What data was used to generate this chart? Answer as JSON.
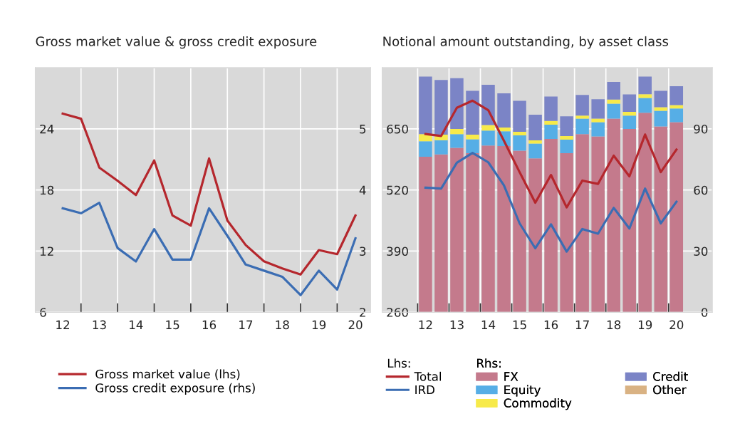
{
  "chart_data": [
    {
      "type": "line",
      "title": "Gross market value & gross credit exposure",
      "categories": [
        "12",
        null,
        "13",
        null,
        "14",
        null,
        "15",
        null,
        "16",
        null,
        "17",
        null,
        "18",
        null,
        "19",
        null,
        "20"
      ],
      "series": [
        {
          "name": "Gross market value (lhs)",
          "color": "#b5272d",
          "axis": "y",
          "values": [
            25.5,
            25.0,
            20.2,
            18.9,
            17.5,
            20.9,
            15.5,
            14.5,
            21.1,
            15.0,
            12.6,
            11.0,
            10.3,
            9.7,
            12.1,
            11.7,
            15.5
          ]
        },
        {
          "name": "Gross credit exposure (rhs)",
          "color": "#3b6db3",
          "axis": "y2",
          "values": [
            3.7,
            3.62,
            3.79,
            3.05,
            2.83,
            3.36,
            2.86,
            2.86,
            3.7,
            3.25,
            2.78,
            2.68,
            2.58,
            2.28,
            2.68,
            2.37,
            3.21
          ]
        }
      ],
      "ylim": [
        6,
        30
      ],
      "yticks": [
        6,
        12,
        18,
        24
      ],
      "y2lim": [
        2,
        6
      ],
      "y2ticks": [
        2,
        3,
        4,
        5
      ],
      "grid": true,
      "legend": "bottom",
      "line_style": "solid",
      "marker": "none"
    },
    {
      "type": "bar",
      "title": "Notional amount outstanding, by asset class",
      "stacked": true,
      "categories": [
        "12",
        null,
        "13",
        null,
        "14",
        null,
        "15",
        null,
        "16",
        null,
        "17",
        null,
        "18",
        null,
        "19",
        null,
        "20"
      ],
      "series": [
        {
          "name": "FX",
          "color": "#c47a8c",
          "axis": "y2",
          "values": [
            76.3,
            77.5,
            80.7,
            78.1,
            81.8,
            81.6,
            79.3,
            75.5,
            85.1,
            78.1,
            87.4,
            86.3,
            95.0,
            90.0,
            97.9,
            91.2,
            93.3
          ]
        },
        {
          "name": "Equity",
          "color": "#56aee6",
          "axis": "y2",
          "values": [
            7.6,
            7.0,
            6.7,
            6.8,
            7.4,
            7.2,
            7.5,
            7.3,
            7.0,
            6.6,
            7.6,
            7.0,
            7.4,
            6.5,
            7.3,
            7.7,
            6.7
          ]
        },
        {
          "name": "Commodity",
          "color": "#f7ea4a",
          "axis": "y2",
          "values": [
            3.5,
            2.7,
            2.6,
            2.3,
            2.7,
            1.9,
            1.8,
            1.6,
            1.8,
            1.8,
            1.5,
            1.7,
            2.0,
            1.9,
            1.8,
            1.7,
            1.7
          ]
        },
        {
          "name": "Credit",
          "color": "#7b84c6",
          "axis": "y2",
          "values": [
            28.3,
            26.8,
            24.9,
            21.5,
            19.8,
            16.8,
            15.2,
            12.6,
            12.0,
            9.7,
            10.2,
            9.6,
            8.7,
            8.5,
            8.7,
            8.1,
            9.3
          ]
        },
        {
          "name": "Other",
          "color": "#d9b283",
          "axis": "y2",
          "values": [
            null,
            null,
            null,
            null,
            null,
            null,
            null,
            null,
            null,
            null,
            null,
            null,
            null,
            null,
            null,
            null,
            null
          ]
        },
        {
          "name": "Total",
          "color": "#b5272d",
          "axis": "y",
          "type": "line",
          "values": [
            639,
            635,
            695,
            710,
            690,
            625,
            558,
            493,
            552,
            483,
            540,
            533,
            593,
            549,
            638,
            558,
            606
          ]
        },
        {
          "name": "IRD",
          "color": "#3b6db3",
          "axis": "y",
          "type": "line",
          "values": [
            525,
            523,
            578,
            599,
            579,
            530,
            449,
            396,
            447,
            389,
            437,
            427,
            482,
            438,
            523,
            449,
            495
          ]
        }
      ],
      "annotations": [
        "Lhs:",
        "Rhs:"
      ],
      "ylim": [
        260,
        780
      ],
      "yticks": [
        260,
        390,
        520,
        650
      ],
      "y2lim": [
        0,
        120
      ],
      "y2ticks": [
        0,
        30,
        60,
        90
      ],
      "grid": true,
      "legend": "bottom",
      "line_style": "solid",
      "marker": "none"
    }
  ]
}
